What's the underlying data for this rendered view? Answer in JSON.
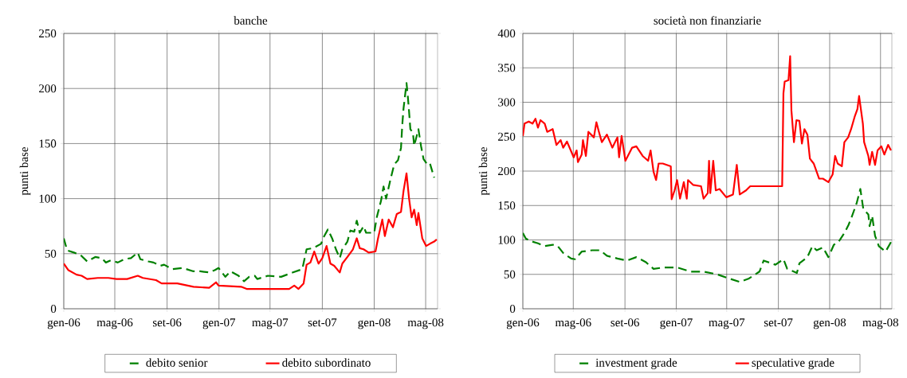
{
  "chart_data": [
    {
      "type": "line",
      "title": "banche",
      "ylabel": "punti base",
      "ylim": [
        0,
        250
      ],
      "yticks": [
        0,
        50,
        100,
        150,
        200,
        250
      ],
      "xlim": [
        "2006-01-01",
        "2008-05-29"
      ],
      "xticks": [
        {
          "value": "2006-01-01",
          "label": "gen-06"
        },
        {
          "value": "2006-05-01",
          "label": "mag-06"
        },
        {
          "value": "2006-09-01",
          "label": "set-06"
        },
        {
          "value": "2007-01-01",
          "label": "gen-07"
        },
        {
          "value": "2007-05-01",
          "label": "mag-07"
        },
        {
          "value": "2007-09-01",
          "label": "set-07"
        },
        {
          "value": "2008-01-01",
          "label": "gen-08"
        },
        {
          "value": "2008-05-01",
          "label": "mag-08"
        }
      ],
      "grid": true,
      "legend": "bottom",
      "series": [
        {
          "name": "debito senior",
          "color": "#008000",
          "line_style": "dashed",
          "x": [
            "2006-01-01",
            "2006-01-09",
            "2006-01-25",
            "2006-02-09",
            "2006-02-25",
            "2006-03-16",
            "2006-03-31",
            "2006-04-10",
            "2006-04-22",
            "2006-05-08",
            "2006-05-23",
            "2006-06-08",
            "2006-06-24",
            "2006-06-30",
            "2006-07-19",
            "2006-07-31",
            "2006-08-16",
            "2006-08-25",
            "2006-09-13",
            "2006-10-08",
            "2006-11-02",
            "2006-11-18",
            "2006-12-09",
            "2006-12-22",
            "2006-12-31",
            "2007-01-16",
            "2007-01-28",
            "2007-02-16",
            "2007-03-01",
            "2007-03-13",
            "2007-03-26",
            "2007-04-01",
            "2007-04-26",
            "2007-05-27",
            "2007-06-24",
            "2007-07-16",
            "2007-07-26",
            "2007-08-10",
            "2007-08-29",
            "2007-09-04",
            "2007-09-14",
            "2007-09-24",
            "2007-10-03",
            "2007-10-12",
            "2007-10-18",
            "2007-10-30",
            "2007-11-06",
            "2007-11-15",
            "2007-11-21",
            "2007-11-28",
            "2007-12-07",
            "2007-12-13",
            "2008-01-01",
            "2008-01-07",
            "2008-01-17",
            "2008-01-23",
            "2008-01-29",
            "2008-02-08",
            "2008-02-17",
            "2008-02-26",
            "2008-03-04",
            "2008-03-07",
            "2008-03-10",
            "2008-03-17",
            "2008-03-20",
            "2008-03-23",
            "2008-03-26",
            "2008-04-01",
            "2008-04-04",
            "2008-04-14",
            "2008-04-20",
            "2008-04-26",
            "2008-05-05",
            "2008-05-11",
            "2008-05-21"
          ],
          "values": [
            64,
            53,
            51,
            49,
            43,
            47,
            46,
            42,
            44,
            42,
            45,
            46,
            51,
            45,
            43,
            42,
            39,
            40,
            36,
            37,
            34,
            34,
            33,
            35,
            37,
            29,
            34,
            30,
            25,
            29,
            30,
            27,
            30,
            29,
            33,
            36,
            54,
            55,
            59,
            65,
            72,
            64,
            54,
            46,
            54,
            61,
            71,
            70,
            80,
            69,
            75,
            69,
            69,
            83,
            98,
            111,
            100,
            117,
            131,
            135,
            146,
            167,
            182,
            205,
            193,
            179,
            163,
            160,
            148,
            163,
            148,
            136,
            131,
            132,
            119
          ]
        },
        {
          "name": "debito subordinato",
          "color": "#ff0000",
          "line_style": "solid",
          "x": [
            "2006-01-01",
            "2006-01-12",
            "2006-01-31",
            "2006-02-12",
            "2006-02-25",
            "2006-03-22",
            "2006-04-16",
            "2006-05-05",
            "2006-05-30",
            "2006-06-24",
            "2006-07-06",
            "2006-08-06",
            "2006-08-19",
            "2006-09-25",
            "2006-11-02",
            "2006-12-09",
            "2006-12-25",
            "2006-12-31",
            "2007-02-22",
            "2007-03-07",
            "2007-04-26",
            "2007-06-15",
            "2007-06-27",
            "2007-07-07",
            "2007-07-19",
            "2007-07-26",
            "2007-08-04",
            "2007-08-13",
            "2007-08-23",
            "2007-09-01",
            "2007-09-11",
            "2007-09-20",
            "2007-09-29",
            "2007-10-12",
            "2007-10-18",
            "2007-10-30",
            "2007-11-12",
            "2007-11-21",
            "2007-11-28",
            "2007-12-07",
            "2007-12-19",
            "2008-01-04",
            "2008-01-10",
            "2008-01-20",
            "2008-01-26",
            "2008-02-04",
            "2008-02-14",
            "2008-02-23",
            "2008-03-04",
            "2008-03-10",
            "2008-03-17",
            "2008-03-23",
            "2008-03-29",
            "2008-04-04",
            "2008-04-10",
            "2008-04-14",
            "2008-04-23",
            "2008-05-02",
            "2008-05-11",
            "2008-05-21",
            "2008-05-27"
          ],
          "values": [
            41,
            35,
            31,
            30,
            27,
            28,
            28,
            27,
            27,
            30,
            28,
            26,
            23,
            23,
            20,
            19,
            24,
            21,
            20,
            18,
            18,
            18,
            21,
            18,
            23,
            40,
            42,
            52,
            41,
            46,
            57,
            41,
            39,
            33,
            41,
            47,
            54,
            64,
            55,
            54,
            51,
            52,
            64,
            81,
            66,
            81,
            74,
            86,
            88,
            107,
            123,
            100,
            83,
            90,
            76,
            87,
            64,
            57,
            59,
            61,
            63
          ]
        }
      ]
    },
    {
      "type": "line",
      "title": "società non finanziarie",
      "ylabel": "punti base",
      "ylim": [
        0,
        400
      ],
      "yticks": [
        0,
        50,
        100,
        150,
        200,
        250,
        300,
        350,
        400
      ],
      "xlim": [
        "2006-01-01",
        "2008-05-28"
      ],
      "xticks": [
        {
          "value": "2006-01-01",
          "label": "gen-06"
        },
        {
          "value": "2006-05-01",
          "label": "mag-06"
        },
        {
          "value": "2006-09-01",
          "label": "set-06"
        },
        {
          "value": "2007-01-01",
          "label": "gen-07"
        },
        {
          "value": "2007-05-01",
          "label": "mag-07"
        },
        {
          "value": "2007-09-01",
          "label": "set-07"
        },
        {
          "value": "2008-01-01",
          "label": "gen-08"
        },
        {
          "value": "2008-05-01",
          "label": "mag-08"
        }
      ],
      "grid": true,
      "legend": "bottom",
      "series": [
        {
          "name": "investment grade",
          "color": "#008000",
          "line_style": "dashed",
          "x": [
            "2006-01-01",
            "2006-01-08",
            "2006-01-21",
            "2006-02-06",
            "2006-02-22",
            "2006-03-13",
            "2006-03-25",
            "2006-04-07",
            "2006-04-26",
            "2006-05-05",
            "2006-05-21",
            "2006-06-15",
            "2006-07-04",
            "2006-07-20",
            "2006-08-14",
            "2006-09-05",
            "2006-09-28",
            "2006-10-20",
            "2006-11-08",
            "2006-12-03",
            "2007-01-03",
            "2007-02-04",
            "2007-03-07",
            "2007-04-08",
            "2007-05-07",
            "2007-06-01",
            "2007-06-23",
            "2007-07-18",
            "2007-07-28",
            "2007-08-25",
            "2007-09-13",
            "2007-09-22",
            "2007-10-15",
            "2007-10-21",
            "2007-11-09",
            "2007-11-21",
            "2007-12-01",
            "2007-12-16",
            "2007-12-29",
            "2008-01-11",
            "2008-01-23",
            "2008-02-05",
            "2008-02-15",
            "2008-02-21",
            "2008-03-05",
            "2008-03-14",
            "2008-03-21",
            "2008-04-02",
            "2008-04-05",
            "2008-04-11",
            "2008-04-18",
            "2008-04-27",
            "2008-05-13",
            "2008-05-26"
          ],
          "values": [
            110,
            102,
            98,
            95,
            91,
            93,
            91,
            81,
            73,
            72,
            83,
            85,
            85,
            77,
            73,
            70,
            75,
            68,
            58,
            60,
            60,
            54,
            54,
            50,
            44,
            39,
            44,
            54,
            70,
            64,
            72,
            58,
            52,
            66,
            75,
            91,
            85,
            89,
            75,
            93,
            98,
            110,
            122,
            131,
            153,
            174,
            145,
            137,
            120,
            135,
            106,
            91,
            83,
            97
          ]
        },
        {
          "name": "speculative grade",
          "color": "#ff0000",
          "line_style": "solid",
          "x": [
            "2006-01-01",
            "2006-01-05",
            "2006-01-15",
            "2006-01-24",
            "2006-01-31",
            "2006-02-06",
            "2006-02-12",
            "2006-02-22",
            "2006-02-28",
            "2006-03-13",
            "2006-03-22",
            "2006-04-01",
            "2006-04-07",
            "2006-04-16",
            "2006-05-02",
            "2006-05-09",
            "2006-05-12",
            "2006-05-21",
            "2006-05-24",
            "2006-05-31",
            "2006-06-06",
            "2006-06-19",
            "2006-06-25",
            "2006-07-01",
            "2006-07-08",
            "2006-07-20",
            "2006-08-02",
            "2006-08-14",
            "2006-08-18",
            "2006-08-24",
            "2006-09-02",
            "2006-09-18",
            "2006-09-28",
            "2006-10-13",
            "2006-10-26",
            "2006-11-01",
            "2006-11-08",
            "2006-11-14",
            "2006-11-20",
            "2006-11-30",
            "2006-12-19",
            "2006-12-21",
            "2006-12-28",
            "2007-01-03",
            "2007-01-10",
            "2007-01-19",
            "2007-01-26",
            "2007-01-29",
            "2007-02-10",
            "2007-03-01",
            "2007-03-07",
            "2007-03-17",
            "2007-03-20",
            "2007-03-23",
            "2007-03-30",
            "2007-04-05",
            "2007-04-14",
            "2007-04-30",
            "2007-05-16",
            "2007-05-25",
            "2007-06-01",
            "2007-06-16",
            "2007-06-26",
            "2007-09-10",
            "2007-09-13",
            "2007-09-16",
            "2007-09-25",
            "2007-09-29",
            "2007-10-02",
            "2007-10-08",
            "2007-10-14",
            "2007-10-21",
            "2007-10-27",
            "2007-11-02",
            "2007-11-09",
            "2007-11-15",
            "2007-11-24",
            "2007-12-07",
            "2007-12-16",
            "2007-12-29",
            "2008-01-08",
            "2008-01-14",
            "2008-01-20",
            "2008-01-30",
            "2008-02-05",
            "2008-02-14",
            "2008-02-21",
            "2008-03-01",
            "2008-03-07",
            "2008-03-11",
            "2008-03-20",
            "2008-03-23",
            "2008-04-02",
            "2008-04-05",
            "2008-04-11",
            "2008-04-18",
            "2008-04-24",
            "2008-05-03",
            "2008-05-10",
            "2008-05-19",
            "2008-05-26"
          ],
          "values": [
            251,
            269,
            272,
            269,
            276,
            263,
            274,
            269,
            257,
            261,
            238,
            245,
            234,
            243,
            220,
            230,
            213,
            224,
            245,
            222,
            257,
            249,
            271,
            257,
            242,
            253,
            234,
            249,
            220,
            251,
            215,
            234,
            236,
            222,
            215,
            230,
            199,
            187,
            211,
            211,
            207,
            159,
            172,
            187,
            160,
            184,
            160,
            187,
            180,
            178,
            160,
            168,
            215,
            168,
            215,
            172,
            174,
            162,
            166,
            209,
            166,
            172,
            178,
            178,
            313,
            330,
            332,
            367,
            288,
            242,
            274,
            273,
            240,
            261,
            253,
            218,
            211,
            189,
            189,
            184,
            195,
            222,
            211,
            207,
            242,
            249,
            261,
            280,
            290,
            309,
            269,
            242,
            222,
            209,
            228,
            209,
            230,
            236,
            224,
            238,
            230
          ]
        }
      ]
    }
  ]
}
